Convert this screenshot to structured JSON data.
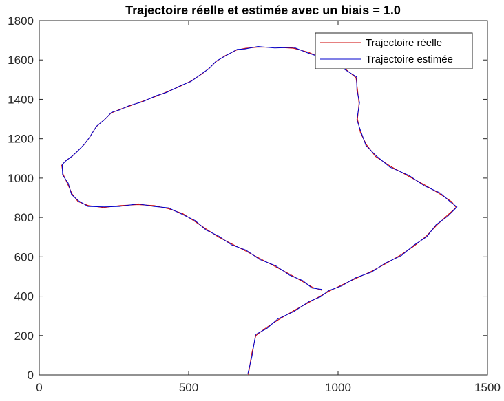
{
  "chart_data": {
    "type": "line",
    "title": "Trajectoire réelle et estimée avec un biais = 1.0",
    "xlabel": "",
    "ylabel": "",
    "xlim": [
      0,
      1500
    ],
    "ylim": [
      0,
      1800
    ],
    "xticks": [
      0,
      500,
      1000,
      1500
    ],
    "yticks": [
      0,
      200,
      400,
      600,
      800,
      1000,
      1200,
      1400,
      1600,
      1800
    ],
    "grid": false,
    "legend_position": "top-right",
    "series": [
      {
        "name": "Trajectoire réelle",
        "color": "#cc0000",
        "x": [
          700,
          710,
          725,
          760,
          800,
          850,
          905,
          940,
          970,
          1010,
          1060,
          1110,
          1160,
          1210,
          1255,
          1295,
          1330,
          1365,
          1395,
          1380,
          1340,
          1290,
          1235,
          1175,
          1125,
          1095,
          1075,
          1065,
          1070,
          1065,
          1060,
          1020,
          960,
          900,
          850,
          790,
          730,
          690,
          660,
          620,
          590,
          570,
          545,
          510,
          470,
          430,
          390,
          345,
          300,
          270,
          240,
          220,
          190,
          170,
          150,
          130,
          110,
          90,
          75,
          80,
          95,
          110,
          130,
          165,
          215,
          270,
          330,
          385,
          430,
          480,
          520,
          560,
          600,
          645,
          690,
          740,
          790,
          840,
          880,
          915,
          945
        ],
        "y": [
          0,
          100,
          200,
          240,
          280,
          325,
          370,
          400,
          425,
          455,
          490,
          525,
          565,
          610,
          655,
          705,
          760,
          810,
          850,
          880,
          920,
          965,
          1010,
          1060,
          1110,
          1170,
          1230,
          1300,
          1380,
          1450,
          1510,
          1560,
          1600,
          1640,
          1660,
          1665,
          1665,
          1660,
          1650,
          1620,
          1590,
          1560,
          1530,
          1495,
          1465,
          1440,
          1415,
          1390,
          1365,
          1350,
          1330,
          1300,
          1260,
          1210,
          1170,
          1140,
          1110,
          1090,
          1065,
          1020,
          970,
          920,
          880,
          860,
          850,
          860,
          865,
          860,
          845,
          820,
          780,
          740,
          700,
          665,
          630,
          590,
          550,
          510,
          475,
          445,
          430
        ]
      },
      {
        "name": "Trajectoire estimée",
        "color": "#0000cc",
        "x": [
          698,
          712,
          724,
          762,
          798,
          852,
          903,
          942,
          968,
          1012,
          1058,
          1112,
          1158,
          1212,
          1253,
          1297,
          1328,
          1367,
          1398,
          1378,
          1342,
          1288,
          1237,
          1173,
          1127,
          1093,
          1077,
          1063,
          1072,
          1063,
          1062,
          1018,
          962,
          898,
          852,
          788,
          732,
          688,
          662,
          618,
          592,
          568,
          547,
          508,
          472,
          428,
          392,
          343,
          302,
          268,
          242,
          218,
          192,
          168,
          152,
          128,
          112,
          88,
          77,
          78,
          97,
          108,
          132,
          163,
          217,
          268,
          332,
          383,
          432,
          478,
          522,
          558,
          602,
          643,
          692,
          738,
          792,
          838,
          882,
          913,
          947
        ],
        "y": [
          5,
          95,
          205,
          236,
          284,
          322,
          373,
          397,
          428,
          452,
          493,
          522,
          568,
          606,
          658,
          702,
          763,
          806,
          853,
          876,
          924,
          961,
          1014,
          1056,
          1114,
          1166,
          1234,
          1296,
          1384,
          1446,
          1514,
          1556,
          1604,
          1636,
          1664,
          1661,
          1669,
          1656,
          1654,
          1616,
          1594,
          1556,
          1534,
          1491,
          1469,
          1436,
          1419,
          1386,
          1369,
          1346,
          1334,
          1296,
          1264,
          1206,
          1174,
          1136,
          1114,
          1086,
          1069,
          1016,
          974,
          916,
          884,
          856,
          854,
          856,
          869,
          856,
          849,
          816,
          784,
          736,
          704,
          661,
          634,
          586,
          554,
          506,
          479,
          441,
          434
        ]
      }
    ]
  }
}
